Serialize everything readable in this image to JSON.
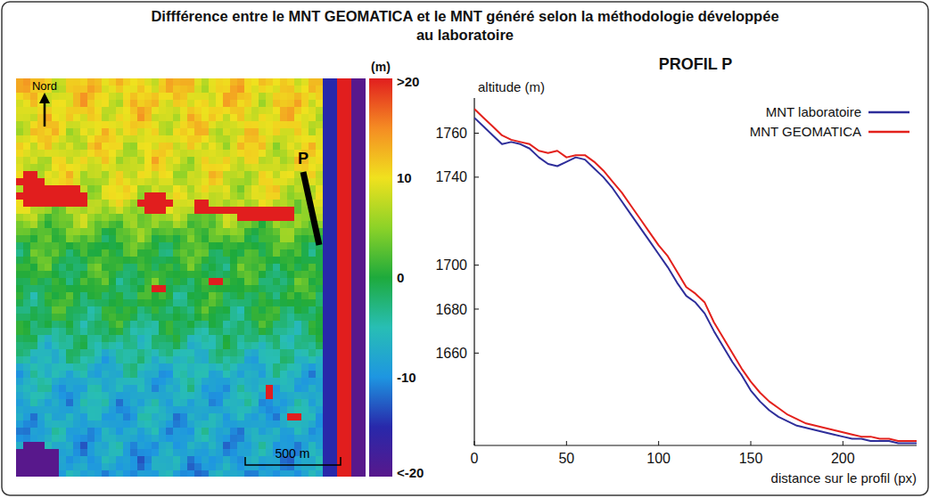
{
  "title": "Diffférence entre le MNT GEOMATICA et le MNT généré selon la méthodologie développée au laboratoire",
  "map": {
    "north_label": "Nord",
    "profile_label": "P",
    "scale_bar": "500 m"
  },
  "colorbar": {
    "label": "(m)",
    "lim": [
      -20,
      20
    ],
    "ticks": [
      {
        "value": 20,
        "label": ">20"
      },
      10,
      0,
      -10,
      {
        "value": -20,
        "label": "<-20"
      }
    ]
  },
  "chart_data": {
    "type": "line",
    "title": "PROFIL P",
    "xlabel": "distance sur le profil (px)",
    "ylabel": "altitude (m)",
    "x": [
      0,
      5,
      10,
      15,
      20,
      25,
      30,
      35,
      40,
      45,
      50,
      55,
      60,
      65,
      70,
      75,
      80,
      85,
      90,
      95,
      100,
      105,
      110,
      115,
      120,
      125,
      130,
      135,
      140,
      145,
      150,
      155,
      160,
      165,
      170,
      175,
      180,
      185,
      190,
      195,
      200,
      205,
      210,
      215,
      220,
      225,
      230,
      235,
      240
    ],
    "series": [
      {
        "name": "MNT laboratoire",
        "color": "#2e2e9a",
        "values": [
          1767,
          1763,
          1759,
          1755,
          1756,
          1755,
          1753,
          1749,
          1746,
          1745,
          1747,
          1749,
          1748,
          1744,
          1740,
          1735,
          1729,
          1723,
          1717,
          1711,
          1705,
          1699,
          1692,
          1686,
          1683,
          1678,
          1670,
          1663,
          1656,
          1650,
          1643,
          1638,
          1634,
          1631,
          1629,
          1627,
          1626,
          1625,
          1624,
          1623,
          1622,
          1621,
          1621,
          1620,
          1620,
          1620,
          1619,
          1619,
          1619
        ]
      },
      {
        "name": "MNT GEOMATICA",
        "color": "#e3211c",
        "values": [
          1771,
          1767,
          1763,
          1759,
          1757,
          1756,
          1755,
          1752,
          1751,
          1752,
          1749,
          1750,
          1750,
          1747,
          1743,
          1738,
          1733,
          1727,
          1721,
          1715,
          1709,
          1704,
          1697,
          1690,
          1687,
          1683,
          1674,
          1667,
          1660,
          1653,
          1647,
          1642,
          1638,
          1635,
          1632,
          1630,
          1628,
          1627,
          1626,
          1625,
          1624,
          1623,
          1622,
          1622,
          1621,
          1621,
          1620,
          1620,
          1620
        ]
      }
    ],
    "xlim": [
      0,
      240
    ],
    "xticks": [
      0,
      50,
      100,
      150,
      200
    ],
    "ylim": [
      1618,
      1776
    ],
    "yticks": [
      1660,
      1680,
      1700,
      1740,
      1760
    ],
    "legend": "upper right",
    "grid": false
  }
}
